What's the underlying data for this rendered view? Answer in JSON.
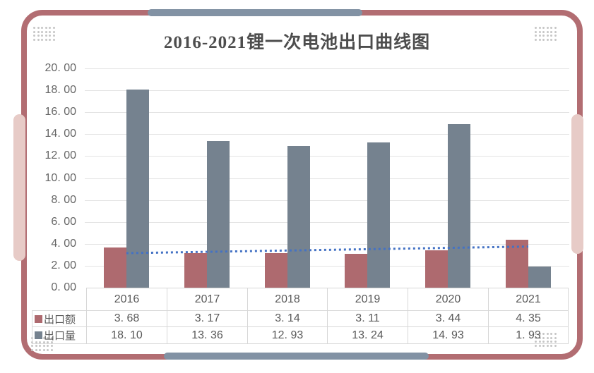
{
  "title": "2016-2021锂一次电池出口曲线图",
  "chart_data": {
    "type": "bar",
    "title": "2016-2021锂一次电池出口曲线图",
    "categories": [
      "2016",
      "2017",
      "2018",
      "2019",
      "2020",
      "2021"
    ],
    "series": [
      {
        "name": "出口额",
        "color": "#ae6a6f",
        "values": [
          3.68,
          3.17,
          3.14,
          3.11,
          3.44,
          4.35
        ]
      },
      {
        "name": "出口量",
        "color": "#75828f",
        "values": [
          18.1,
          13.36,
          12.93,
          13.24,
          14.93,
          1.93
        ]
      }
    ],
    "trendline": {
      "series": "出口额",
      "style": "dotted",
      "color": "#4472c4",
      "start_value": 3.15,
      "end_value": 3.75
    },
    "xlabel": "",
    "ylabel": "",
    "ylim": [
      0,
      20
    ],
    "ytick_step": 2,
    "grid": true,
    "legend_position": "table-row-headers"
  },
  "y_axis": {
    "ticks": [
      "20. 00",
      "18. 00",
      "16. 00",
      "14. 00",
      "12. 00",
      "10. 00",
      "8. 00",
      "6. 00",
      "4. 00",
      "2. 00",
      "0. 00"
    ]
  },
  "table": {
    "years": [
      "2016",
      "2017",
      "2018",
      "2019",
      "2020",
      "2021"
    ],
    "rows": [
      {
        "label": "出口额",
        "swatch": "#ae6a6f",
        "values": [
          "3. 68",
          "3. 17",
          "3. 14",
          "3. 11",
          "3. 44",
          "4. 35"
        ]
      },
      {
        "label": "出口量",
        "swatch": "#75828f",
        "values": [
          "18. 10",
          "13. 36",
          "12. 93",
          "13. 24",
          "14. 93",
          "1. 93"
        ]
      }
    ]
  },
  "colors": {
    "card_border": "#b26d72",
    "accent_pink": "#e7cbc7",
    "accent_slate": "#8292a4",
    "bar_red": "#ae6a6f",
    "bar_gray": "#75828f",
    "trend_blue": "#4472c4",
    "grid_line": "#e3e3e3",
    "table_border": "#d7d7d7",
    "text": "#595959",
    "title_text": "#4d4d4d"
  }
}
